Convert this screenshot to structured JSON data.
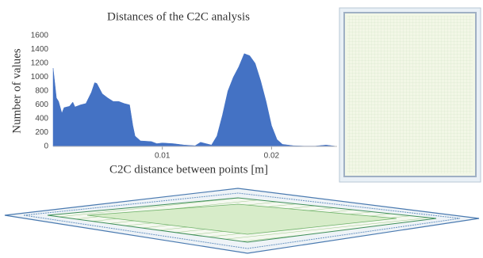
{
  "chart_data": {
    "type": "area",
    "title": "Distances of the C2C analysis",
    "x_label": "C2C distance between points [m]",
    "y_label": "Number of values",
    "x": [
      0,
      0.0003,
      0.0005,
      0.0008,
      0.001,
      0.0015,
      0.0018,
      0.002,
      0.0025,
      0.003,
      0.0035,
      0.0038,
      0.004,
      0.0045,
      0.005,
      0.0055,
      0.006,
      0.0065,
      0.007,
      0.0073,
      0.0075,
      0.008,
      0.009,
      0.0095,
      0.01,
      0.011,
      0.012,
      0.013,
      0.0135,
      0.014,
      0.0145,
      0.015,
      0.0155,
      0.016,
      0.0165,
      0.017,
      0.0175,
      0.018,
      0.0185,
      0.019,
      0.0195,
      0.02,
      0.0205,
      0.021,
      0.022,
      0.023,
      0.024,
      0.025,
      0.026
    ],
    "values": [
      1130,
      700,
      650,
      480,
      560,
      580,
      640,
      570,
      600,
      620,
      780,
      920,
      910,
      760,
      700,
      650,
      650,
      620,
      600,
      300,
      150,
      80,
      70,
      40,
      50,
      40,
      20,
      10,
      60,
      40,
      20,
      150,
      450,
      800,
      1000,
      1150,
      1340,
      1310,
      1200,
      950,
      650,
      300,
      100,
      30,
      10,
      5,
      5,
      20,
      0
    ],
    "color": "#4472c4",
    "xlim": [
      0,
      0.026
    ],
    "xticks": [
      0.01,
      0.02
    ],
    "ylim": [
      0,
      1600
    ],
    "yticks": [
      0,
      200,
      400,
      600,
      800,
      1000,
      1200,
      1400,
      1600
    ],
    "grid": false
  }
}
